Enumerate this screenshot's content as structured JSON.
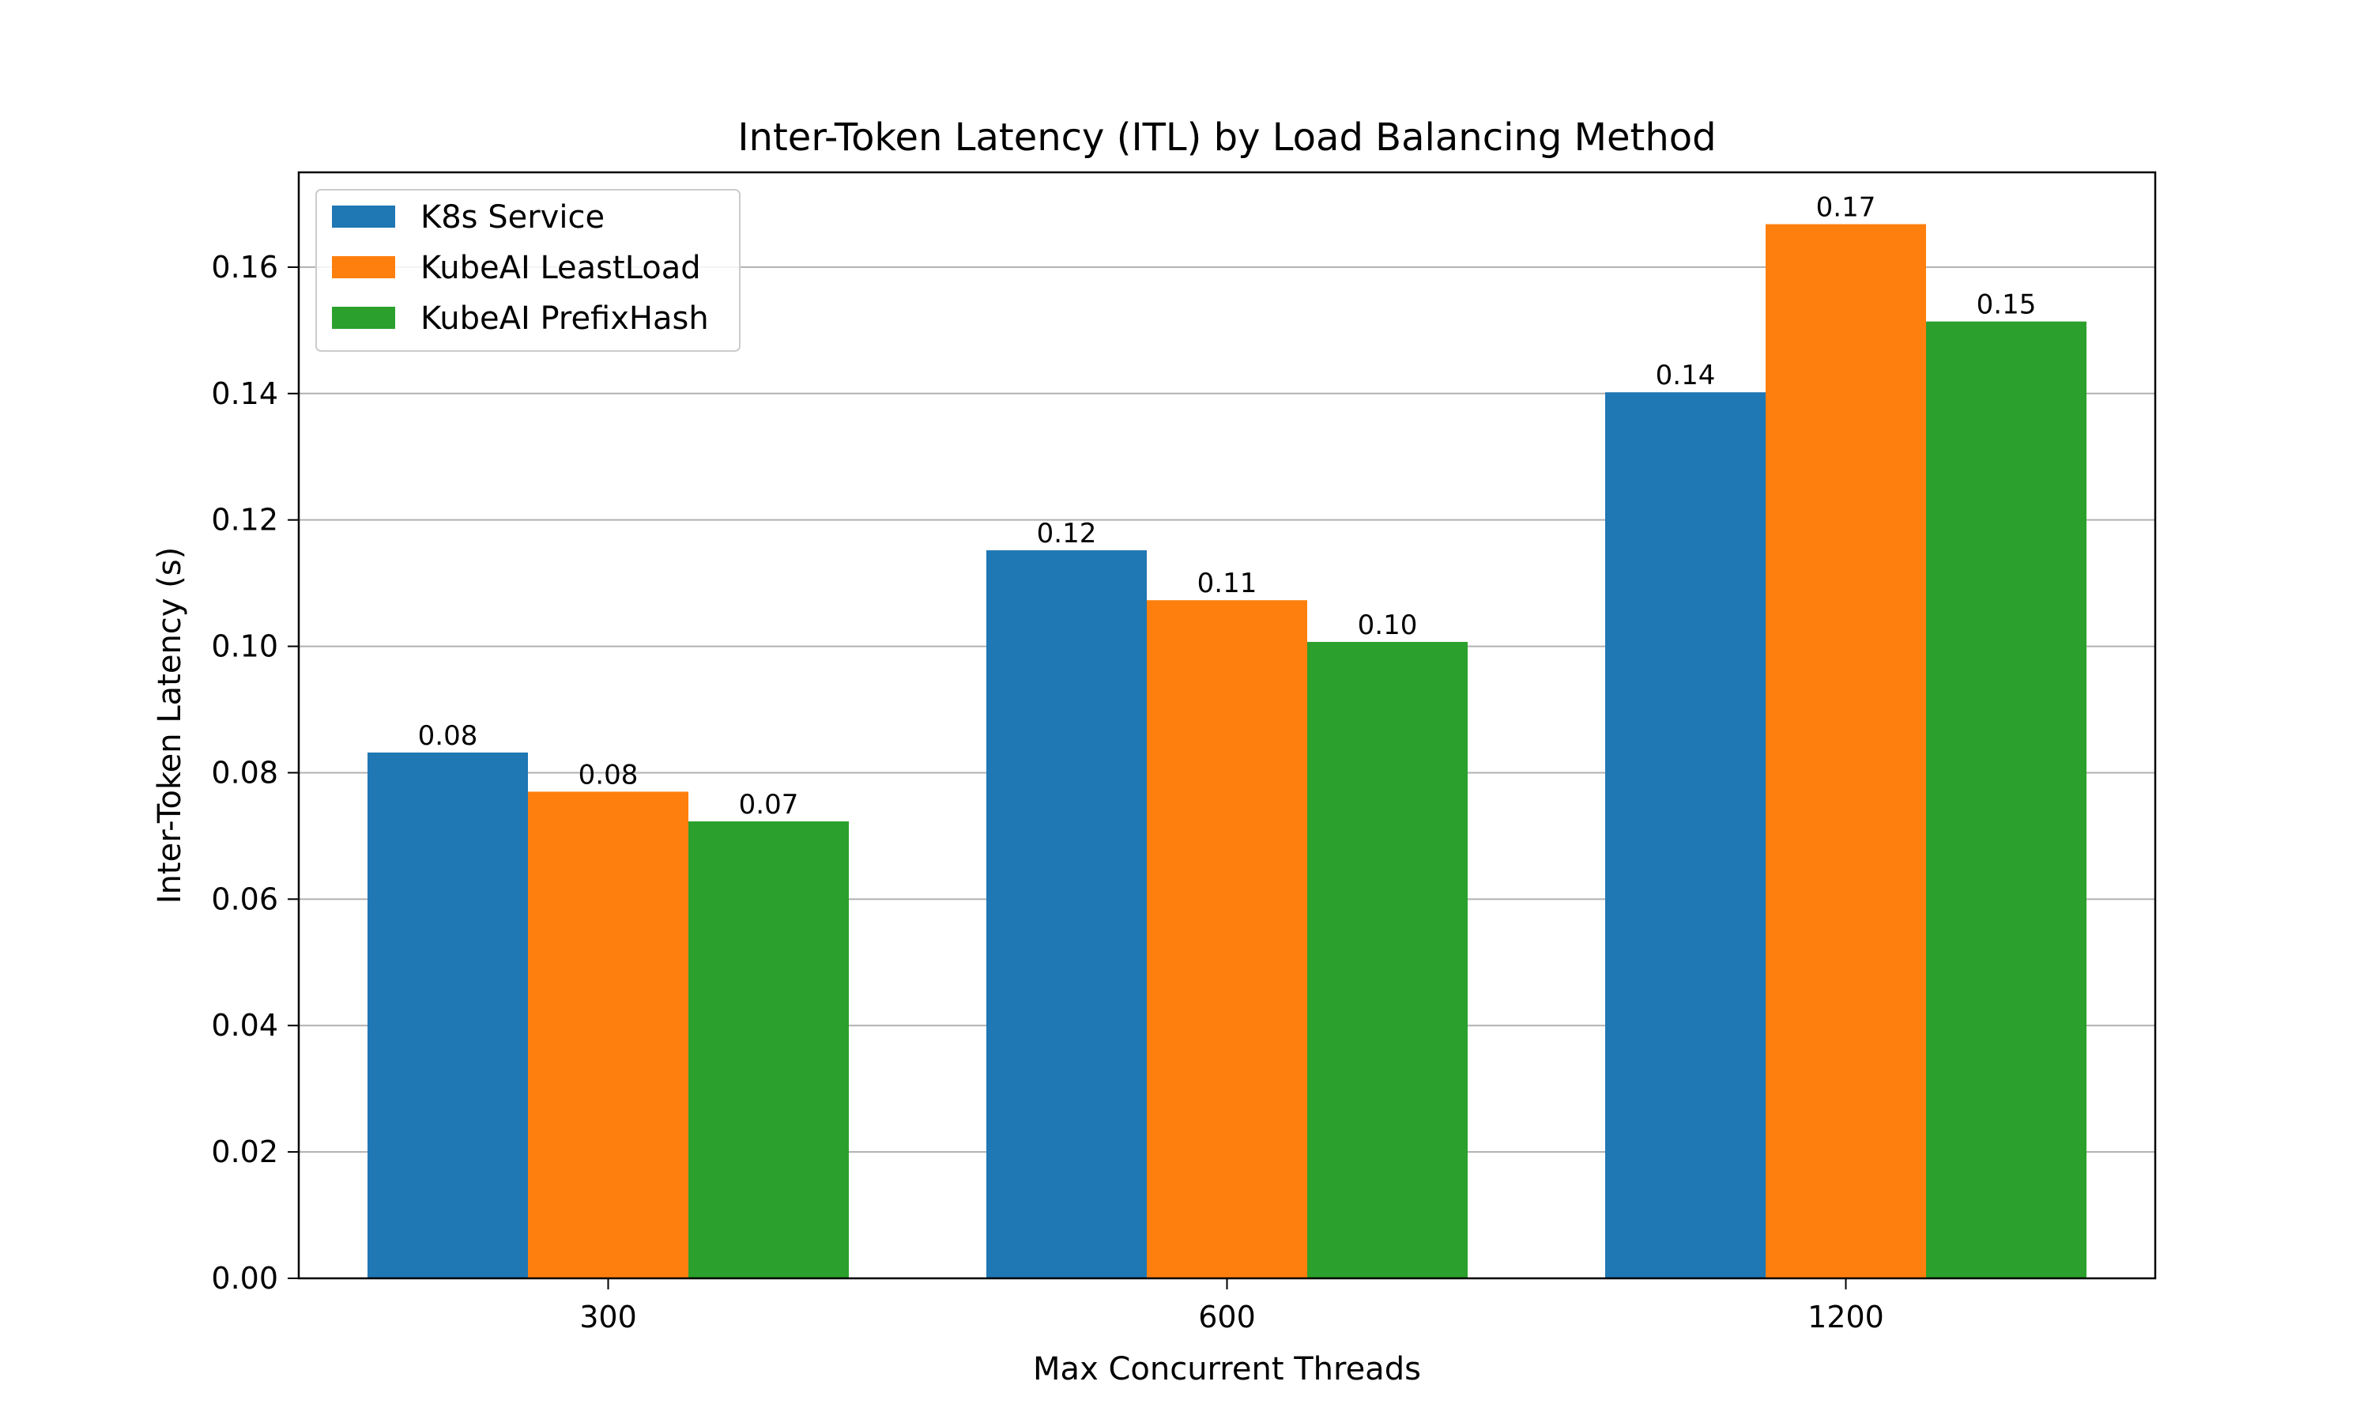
{
  "chart_data": {
    "type": "bar",
    "title": "Inter-Token Latency (ITL) by Load Balancing Method",
    "xlabel": "Max Concurrent Threads",
    "ylabel": "Inter-Token Latency (s)",
    "categories": [
      "300",
      "600",
      "1200"
    ],
    "series": [
      {
        "name": "K8s Service",
        "color": "#1f77b4",
        "values": [
          0.0832,
          0.1152,
          0.1402
        ],
        "labels": [
          "0.08",
          "0.12",
          "0.14"
        ]
      },
      {
        "name": "KubeAI LeastLoad",
        "color": "#ff7f0e",
        "values": [
          0.077,
          0.1073,
          0.1668
        ],
        "labels": [
          "0.08",
          "0.11",
          "0.17"
        ]
      },
      {
        "name": "KubeAI PrefixHash",
        "color": "#2ca02c",
        "values": [
          0.0723,
          0.1007,
          0.1514
        ],
        "labels": [
          "0.07",
          "0.10",
          "0.15"
        ]
      }
    ],
    "ylim": [
      0,
      0.175
    ],
    "yticks": [
      "0.00",
      "0.02",
      "0.04",
      "0.06",
      "0.08",
      "0.10",
      "0.12",
      "0.14",
      "0.16"
    ],
    "grid": "horizontal",
    "legend_position": "top-left"
  }
}
